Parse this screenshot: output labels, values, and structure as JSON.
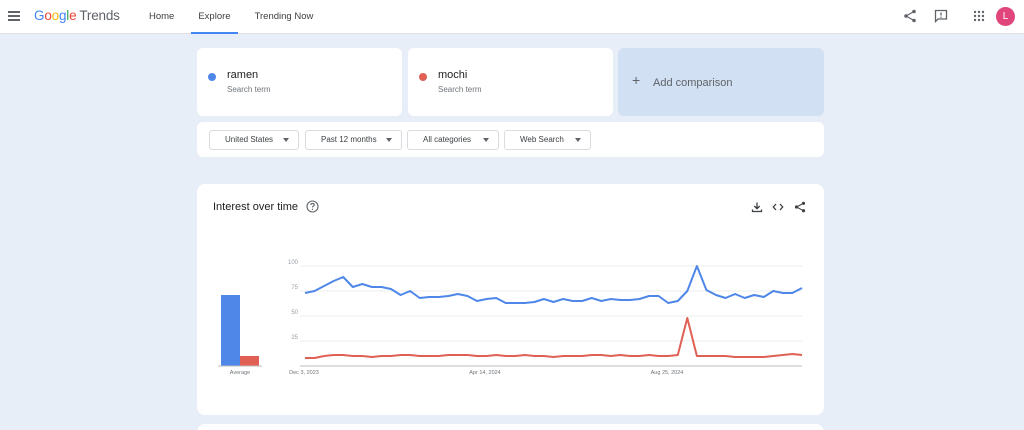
{
  "header": {
    "logo_google": [
      "G",
      "o",
      "o",
      "g",
      "l",
      "e"
    ],
    "logo_trends": "Trends",
    "nav": [
      {
        "label": "Home"
      },
      {
        "label": "Explore"
      },
      {
        "label": "Trending Now"
      }
    ],
    "active_nav": "Explore",
    "avatar_initial": "L",
    "avatar_color": "#e0457b"
  },
  "terms": [
    {
      "name": "ramen",
      "sub": "Search term",
      "color": "#4e87e8"
    },
    {
      "name": "mochi",
      "sub": "Search term",
      "color": "#e06055"
    }
  ],
  "add_comparison": "Add comparison",
  "filters": [
    "United States",
    "Past 12 months",
    "All categories",
    "Web Search"
  ],
  "chart_card": {
    "title": "Interest over time"
  },
  "chart_data": {
    "type": "line",
    "title": "Interest over time",
    "ylim": [
      0,
      100
    ],
    "yticks": [
      "100",
      "75",
      "50",
      "25"
    ],
    "xticks": [
      "Dec 3, 2023",
      "Apr 14, 2024",
      "Aug 25, 2024"
    ],
    "average": {
      "label": "Average",
      "values": [
        71,
        10
      ]
    },
    "series": [
      {
        "name": "ramen",
        "color": "#4e87e8",
        "values": [
          73,
          75,
          80,
          85,
          89,
          79,
          82,
          79,
          79,
          77,
          71,
          75,
          68,
          69,
          69,
          70,
          72,
          70,
          65,
          67,
          68,
          63,
          63,
          63,
          64,
          67,
          64,
          67,
          65,
          65,
          68,
          65,
          67,
          66,
          66,
          67,
          70,
          70,
          63,
          65,
          75,
          100,
          76,
          71,
          68,
          72,
          68,
          71,
          69,
          75,
          73,
          73,
          78
        ]
      },
      {
        "name": "mochi",
        "color": "#e06055",
        "values": [
          8,
          8,
          10,
          11,
          11,
          10,
          10,
          9,
          10,
          10,
          11,
          11,
          10,
          10,
          10,
          11,
          11,
          11,
          10,
          10,
          11,
          10,
          10,
          11,
          10,
          10,
          9,
          10,
          10,
          10,
          11,
          11,
          10,
          11,
          10,
          10,
          11,
          10,
          10,
          11,
          48,
          10,
          10,
          10,
          10,
          9,
          9,
          9,
          9,
          10,
          11,
          12,
          11
        ]
      }
    ]
  }
}
